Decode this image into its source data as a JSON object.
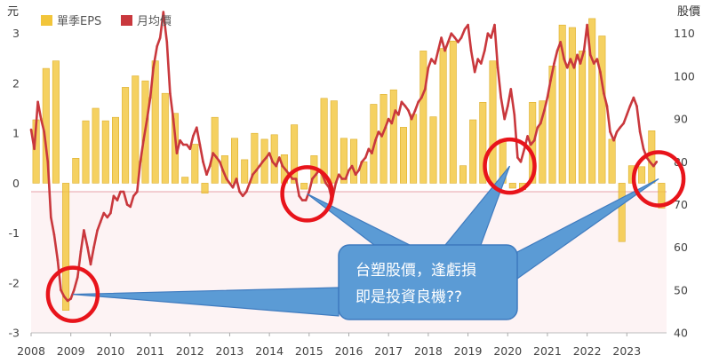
{
  "chart_data": {
    "type": "bar+line",
    "left_axis_unit": "元",
    "right_axis_unit": "股價",
    "left_ylim": [
      -3,
      3.6
    ],
    "right_ylim": [
      40,
      117
    ],
    "left_ticks": [
      "3",
      "2",
      "1",
      "0",
      "-1",
      "-2",
      "-3"
    ],
    "right_ticks": [
      "110",
      "100",
      "90",
      "80",
      "70",
      "60",
      "50",
      "40"
    ],
    "x_range": [
      2008.0,
      2024.0
    ],
    "x_ticks": [
      "2008",
      "2009",
      "2010",
      "2011",
      "2012",
      "2013",
      "2014",
      "2015",
      "2016",
      "2017",
      "2018",
      "2019",
      "2020",
      "2021",
      "2022",
      "2023"
    ],
    "legend_position": "top-left",
    "series": [
      {
        "name": "單季EPS",
        "type": "bar",
        "color": "#f2c53a",
        "x": [
          2008.0,
          2008.25,
          2008.5,
          2008.75,
          2009.0,
          2009.25,
          2009.5,
          2009.75,
          2010.0,
          2010.25,
          2010.5,
          2010.75,
          2011.0,
          2011.25,
          2011.5,
          2011.75,
          2012.0,
          2012.25,
          2012.5,
          2012.75,
          2013.0,
          2013.25,
          2013.5,
          2013.75,
          2014.0,
          2014.25,
          2014.5,
          2014.75,
          2015.0,
          2015.25,
          2015.5,
          2015.75,
          2016.0,
          2016.25,
          2016.5,
          2016.75,
          2017.0,
          2017.25,
          2017.5,
          2017.75,
          2018.0,
          2018.25,
          2018.5,
          2018.75,
          2019.0,
          2019.25,
          2019.5,
          2019.75,
          2020.0,
          2020.25,
          2020.5,
          2020.75,
          2021.0,
          2021.25,
          2021.5,
          2021.75,
          2022.0,
          2022.25,
          2022.5,
          2022.75,
          2023.0,
          2023.25,
          2023.5,
          2023.75
        ],
        "values": [
          1.27,
          2.3,
          2.45,
          -2.55,
          0.5,
          1.25,
          1.5,
          1.25,
          1.32,
          1.92,
          2.15,
          2.05,
          2.45,
          1.8,
          1.4,
          0.12,
          0.78,
          -0.2,
          1.32,
          0.55,
          0.9,
          0.47,
          1.0,
          0.88,
          0.97,
          0.57,
          1.17,
          -0.12,
          0.55,
          1.7,
          1.65,
          0.9,
          0.88,
          0.43,
          1.58,
          1.78,
          1.87,
          1.12,
          1.38,
          2.65,
          1.33,
          2.7,
          2.85,
          0.35,
          1.27,
          1.62,
          2.45,
          0.88,
          -0.1,
          -0.13,
          1.62,
          1.65,
          2.35,
          3.17,
          3.12,
          2.65,
          3.3,
          2.95,
          0.88,
          -1.17,
          0.35,
          0.33,
          1.05,
          -0.5
        ]
      },
      {
        "name": "月均價",
        "type": "line",
        "color": "#c9383d",
        "points": [
          [
            2008.0,
            87.5
          ],
          [
            2008.08,
            83
          ],
          [
            2008.17,
            94
          ],
          [
            2008.25,
            90
          ],
          [
            2008.33,
            87
          ],
          [
            2008.42,
            80
          ],
          [
            2008.5,
            67
          ],
          [
            2008.58,
            63
          ],
          [
            2008.67,
            57
          ],
          [
            2008.75,
            50
          ],
          [
            2008.83,
            48.5
          ],
          [
            2008.92,
            47.5
          ],
          [
            2009.0,
            48
          ],
          [
            2009.08,
            50
          ],
          [
            2009.17,
            53
          ],
          [
            2009.25,
            59
          ],
          [
            2009.33,
            64
          ],
          [
            2009.42,
            60
          ],
          [
            2009.5,
            56
          ],
          [
            2009.58,
            60
          ],
          [
            2009.67,
            64
          ],
          [
            2009.75,
            66
          ],
          [
            2009.83,
            68
          ],
          [
            2009.92,
            67
          ],
          [
            2010.0,
            68
          ],
          [
            2010.08,
            72
          ],
          [
            2010.17,
            71
          ],
          [
            2010.25,
            73
          ],
          [
            2010.33,
            73
          ],
          [
            2010.42,
            70
          ],
          [
            2010.5,
            69.5
          ],
          [
            2010.58,
            72
          ],
          [
            2010.67,
            73
          ],
          [
            2010.75,
            80
          ],
          [
            2010.83,
            85
          ],
          [
            2010.92,
            90
          ],
          [
            2011.0,
            95
          ],
          [
            2011.08,
            102
          ],
          [
            2011.17,
            107
          ],
          [
            2011.25,
            109
          ],
          [
            2011.33,
            115
          ],
          [
            2011.42,
            108
          ],
          [
            2011.5,
            96
          ],
          [
            2011.58,
            90
          ],
          [
            2011.67,
            82
          ],
          [
            2011.75,
            85
          ],
          [
            2011.83,
            84
          ],
          [
            2011.92,
            84
          ],
          [
            2012.0,
            83
          ],
          [
            2012.08,
            86
          ],
          [
            2012.17,
            88
          ],
          [
            2012.25,
            84
          ],
          [
            2012.33,
            80
          ],
          [
            2012.42,
            77
          ],
          [
            2012.5,
            79
          ],
          [
            2012.58,
            82
          ],
          [
            2012.67,
            81
          ],
          [
            2012.75,
            80
          ],
          [
            2012.83,
            78
          ],
          [
            2012.92,
            76
          ],
          [
            2013.0,
            75
          ],
          [
            2013.08,
            74
          ],
          [
            2013.17,
            76
          ],
          [
            2013.25,
            73
          ],
          [
            2013.33,
            72
          ],
          [
            2013.42,
            73
          ],
          [
            2013.5,
            75
          ],
          [
            2013.58,
            77
          ],
          [
            2013.67,
            78
          ],
          [
            2013.75,
            79
          ],
          [
            2013.83,
            80
          ],
          [
            2013.92,
            81
          ],
          [
            2014.0,
            82
          ],
          [
            2014.08,
            80
          ],
          [
            2014.17,
            79
          ],
          [
            2014.25,
            81
          ],
          [
            2014.33,
            79
          ],
          [
            2014.42,
            78
          ],
          [
            2014.5,
            77
          ],
          [
            2014.58,
            76
          ],
          [
            2014.67,
            76
          ],
          [
            2014.75,
            72
          ],
          [
            2014.83,
            71
          ],
          [
            2014.92,
            71
          ],
          [
            2015.0,
            73
          ],
          [
            2015.08,
            76
          ],
          [
            2015.17,
            77
          ],
          [
            2015.25,
            78
          ],
          [
            2015.33,
            77
          ],
          [
            2015.42,
            75
          ],
          [
            2015.5,
            74
          ],
          [
            2015.58,
            71
          ],
          [
            2015.67,
            75
          ],
          [
            2015.75,
            77
          ],
          [
            2015.83,
            76
          ],
          [
            2015.92,
            76
          ],
          [
            2016.0,
            78
          ],
          [
            2016.08,
            79
          ],
          [
            2016.17,
            77
          ],
          [
            2016.25,
            78
          ],
          [
            2016.33,
            80
          ],
          [
            2016.42,
            81
          ],
          [
            2016.5,
            83
          ],
          [
            2016.58,
            82
          ],
          [
            2016.67,
            85
          ],
          [
            2016.75,
            87
          ],
          [
            2016.83,
            86
          ],
          [
            2016.92,
            88
          ],
          [
            2017.0,
            90
          ],
          [
            2017.08,
            89
          ],
          [
            2017.17,
            92
          ],
          [
            2017.25,
            91
          ],
          [
            2017.33,
            94
          ],
          [
            2017.42,
            93
          ],
          [
            2017.5,
            92
          ],
          [
            2017.58,
            90
          ],
          [
            2017.67,
            92
          ],
          [
            2017.75,
            94
          ],
          [
            2017.83,
            95
          ],
          [
            2017.92,
            97
          ],
          [
            2018.0,
            102
          ],
          [
            2018.08,
            104
          ],
          [
            2018.17,
            103
          ],
          [
            2018.25,
            106
          ],
          [
            2018.33,
            109
          ],
          [
            2018.42,
            106
          ],
          [
            2018.5,
            108
          ],
          [
            2018.58,
            110
          ],
          [
            2018.67,
            109
          ],
          [
            2018.75,
            108
          ],
          [
            2018.83,
            109
          ],
          [
            2018.92,
            111
          ],
          [
            2019.0,
            112
          ],
          [
            2019.08,
            106
          ],
          [
            2019.17,
            101
          ],
          [
            2019.25,
            104
          ],
          [
            2019.33,
            103
          ],
          [
            2019.42,
            106
          ],
          [
            2019.5,
            110
          ],
          [
            2019.58,
            109
          ],
          [
            2019.67,
            112
          ],
          [
            2019.75,
            102
          ],
          [
            2019.83,
            95
          ],
          [
            2019.92,
            90
          ],
          [
            2020.0,
            93
          ],
          [
            2020.08,
            97
          ],
          [
            2020.17,
            91
          ],
          [
            2020.25,
            81
          ],
          [
            2020.33,
            80
          ],
          [
            2020.42,
            83
          ],
          [
            2020.5,
            86
          ],
          [
            2020.58,
            84
          ],
          [
            2020.67,
            85
          ],
          [
            2020.75,
            88
          ],
          [
            2020.83,
            89
          ],
          [
            2020.92,
            92
          ],
          [
            2021.0,
            95
          ],
          [
            2021.08,
            99
          ],
          [
            2021.17,
            103
          ],
          [
            2021.25,
            106
          ],
          [
            2021.33,
            108
          ],
          [
            2021.42,
            104
          ],
          [
            2021.5,
            102
          ],
          [
            2021.58,
            104
          ],
          [
            2021.67,
            102
          ],
          [
            2021.75,
            105
          ],
          [
            2021.83,
            103
          ],
          [
            2021.92,
            106
          ],
          [
            2022.0,
            112
          ],
          [
            2022.08,
            105
          ],
          [
            2022.17,
            103
          ],
          [
            2022.25,
            104
          ],
          [
            2022.33,
            101
          ],
          [
            2022.42,
            96
          ],
          [
            2022.5,
            93
          ],
          [
            2022.58,
            87
          ],
          [
            2022.67,
            85
          ],
          [
            2022.75,
            87
          ],
          [
            2022.83,
            88
          ],
          [
            2022.92,
            89
          ],
          [
            2023.0,
            91
          ],
          [
            2023.08,
            93
          ],
          [
            2023.17,
            95
          ],
          [
            2023.25,
            93
          ],
          [
            2023.33,
            87
          ],
          [
            2023.42,
            83
          ],
          [
            2023.5,
            81
          ],
          [
            2023.58,
            80
          ],
          [
            2023.67,
            79
          ],
          [
            2023.75,
            80
          ]
        ]
      }
    ],
    "highlights": [
      {
        "label": "low-2009",
        "x": 2009.05,
        "y": 49
      },
      {
        "label": "low-2015",
        "x": 2014.95,
        "y": 72.5
      },
      {
        "label": "low-2020",
        "x": 2020.05,
        "y": 79
      },
      {
        "label": "low-2023",
        "x": 2023.8,
        "y": 76
      }
    ],
    "annotation": {
      "lines": [
        "台塑股價，逢虧損",
        "即是投資良機??"
      ],
      "color": "#5b9bd5"
    }
  }
}
